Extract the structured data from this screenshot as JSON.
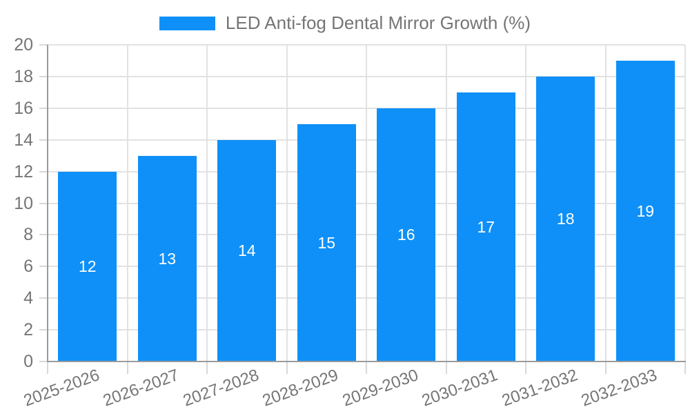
{
  "chart_data": {
    "type": "bar",
    "title": "LED Anti-fog Dental Mirror Growth (%)",
    "legend": {
      "label": "LED Anti-fog Dental Mirror Growth (%)",
      "position": "top"
    },
    "categories": [
      "2025-2026",
      "2026-2027",
      "2027-2028",
      "2028-2029",
      "2029-2030",
      "2030-2031",
      "2031-2032",
      "2032-2033"
    ],
    "values": [
      12,
      13,
      14,
      15,
      16,
      17,
      18,
      19
    ],
    "bar_value_labels": [
      "12",
      "13",
      "14",
      "15",
      "16",
      "17",
      "18",
      "19"
    ],
    "xlabel": "",
    "ylabel": "",
    "ylim": [
      0,
      20
    ],
    "y_tick_step": 2,
    "y_ticks": [
      0,
      2,
      4,
      6,
      8,
      10,
      12,
      14,
      16,
      18,
      20
    ],
    "grid": true,
    "x_label_rotation_deg": -20,
    "colors": {
      "bar": "#0e90f8",
      "grid": "#e2e2e2",
      "tick": "#d8d8d8",
      "axis": "#9a9a9a",
      "text": "#757575",
      "bar_label": "#ffffff",
      "background": "#ffffff"
    }
  }
}
